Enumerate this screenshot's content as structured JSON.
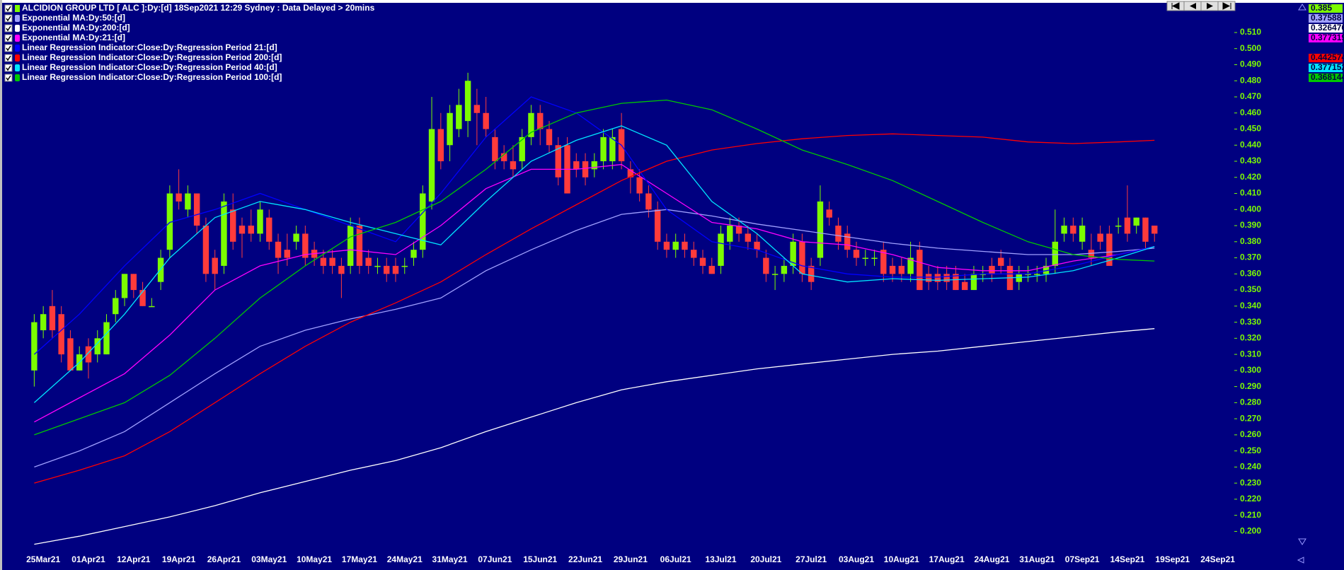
{
  "chart_data": {
    "type": "candlestick",
    "title": "ALCIDION GROUP LTD [ ALC ]:Dy:[d]  18Sep2021 12:29 Sydney : Data Delayed > 20mins",
    "up_color": "#7cfc00",
    "down_color": "#ff3b3b",
    "last_value": 0.385,
    "categories": [
      null,
      "25Mar21",
      null,
      null,
      null,
      null,
      "01Apr21",
      null,
      null,
      null,
      null,
      "12Apr21",
      null,
      null,
      null,
      null,
      "19Apr21",
      null,
      null,
      null,
      null,
      "26Apr21",
      null,
      null,
      null,
      null,
      "03May21",
      null,
      null,
      null,
      null,
      "10May21",
      null,
      null,
      null,
      null,
      "17May21",
      null,
      null,
      null,
      null,
      "24May21",
      null,
      null,
      null,
      null,
      "31May21",
      null,
      null,
      null,
      null,
      "07Jun21",
      null,
      null,
      null,
      null,
      "15Jun21",
      null,
      null,
      null,
      null,
      "22Jun21",
      null,
      null,
      null,
      null,
      "29Jun21",
      null,
      null,
      null,
      null,
      "06Jul21",
      null,
      null,
      null,
      null,
      "13Jul21",
      null,
      null,
      null,
      null,
      "20Jul21",
      null,
      null,
      null,
      null,
      "27Jul21",
      null,
      null,
      null,
      null,
      "03Aug21",
      null,
      null,
      null,
      null,
      "10Aug21",
      null,
      null,
      null,
      null,
      "17Aug21",
      null,
      null,
      null,
      null,
      "24Aug21",
      null,
      null,
      null,
      null,
      "31Aug21",
      null,
      null,
      null,
      null,
      "07Sep21",
      null,
      null,
      null,
      null,
      "14Sep21",
      null,
      null,
      null,
      null,
      "19Sep21",
      null,
      null,
      null,
      null,
      "24Sep21"
    ],
    "open": [
      0.3,
      0.325,
      0.34,
      0.335,
      0.32,
      0.3,
      0.315,
      0.31,
      0.31,
      0.335,
      0.345,
      0.36,
      0.35,
      0.34,
      0.355,
      0.375,
      0.41,
      0.4,
      0.41,
      0.39,
      0.37,
      0.365,
      0.4,
      0.39,
      0.39,
      0.385,
      0.395,
      0.38,
      0.375,
      0.38,
      0.385,
      0.375,
      0.37,
      0.37,
      0.365,
      0.365,
      0.39,
      0.37,
      0.365,
      0.365,
      0.365,
      0.365,
      0.37,
      0.375,
      0.405,
      0.45,
      0.44,
      0.45,
      0.455,
      0.465,
      0.46,
      0.445,
      0.435,
      0.43,
      0.43,
      0.445,
      0.46,
      0.45,
      0.44,
      0.44,
      0.43,
      0.43,
      0.425,
      0.43,
      0.43,
      0.45,
      0.425,
      0.42,
      0.41,
      0.4,
      0.38,
      0.375,
      0.38,
      0.375,
      0.37,
      0.365,
      0.365,
      0.38,
      0.39,
      0.385,
      0.38,
      0.37,
      0.36,
      0.36,
      0.365,
      0.38,
      0.365,
      0.37,
      0.4,
      0.39,
      0.385,
      0.375,
      0.37,
      0.37,
      0.375,
      0.365,
      0.365,
      0.36,
      0.375,
      0.36,
      0.36,
      0.36,
      0.36,
      0.355,
      0.35,
      0.36,
      0.365,
      0.37,
      0.365,
      0.355,
      0.36,
      0.36,
      0.36,
      0.365,
      0.385,
      0.39,
      0.38,
      0.375,
      0.385,
      0.385,
      0.39,
      0.395,
      0.39,
      0.395,
      0.39,
      null,
      null,
      null,
      null,
      null,
      null,
      null
    ],
    "high": [
      0.335,
      0.34,
      0.35,
      0.34,
      0.325,
      0.315,
      0.32,
      0.325,
      0.335,
      0.35,
      0.36,
      0.36,
      0.355,
      0.345,
      0.375,
      0.415,
      0.425,
      0.415,
      0.41,
      0.395,
      0.375,
      0.41,
      0.41,
      0.395,
      0.4,
      0.405,
      0.4,
      0.385,
      0.385,
      0.39,
      0.39,
      0.38,
      0.375,
      0.375,
      0.37,
      0.395,
      0.395,
      0.375,
      0.37,
      0.37,
      0.37,
      0.37,
      0.38,
      0.415,
      0.47,
      0.46,
      0.465,
      0.475,
      0.485,
      0.475,
      0.47,
      0.45,
      0.44,
      0.44,
      0.45,
      0.465,
      0.465,
      0.455,
      0.445,
      0.445,
      0.435,
      0.435,
      0.435,
      0.45,
      0.45,
      0.46,
      0.43,
      0.425,
      0.415,
      0.405,
      0.385,
      0.385,
      0.385,
      0.38,
      0.375,
      0.37,
      0.39,
      0.395,
      0.395,
      0.39,
      0.385,
      0.375,
      0.365,
      0.37,
      0.385,
      0.385,
      0.37,
      0.415,
      0.405,
      0.395,
      0.39,
      0.38,
      0.375,
      0.375,
      0.38,
      0.37,
      0.37,
      0.38,
      0.38,
      0.365,
      0.365,
      0.365,
      0.365,
      0.36,
      0.365,
      0.365,
      0.37,
      0.375,
      0.37,
      0.365,
      0.365,
      0.365,
      0.37,
      0.4,
      0.395,
      0.395,
      0.395,
      0.385,
      0.39,
      0.39,
      0.395,
      0.415,
      0.395,
      0.395,
      0.39,
      null,
      null,
      null,
      null,
      null,
      null,
      null
    ],
    "low": [
      0.29,
      0.32,
      0.32,
      0.305,
      0.3,
      0.3,
      0.295,
      0.305,
      0.31,
      0.33,
      0.34,
      0.345,
      0.34,
      0.34,
      0.35,
      0.37,
      0.4,
      0.395,
      0.385,
      0.355,
      0.35,
      0.36,
      0.375,
      0.37,
      0.38,
      0.38,
      0.375,
      0.36,
      0.365,
      0.375,
      0.365,
      0.365,
      0.36,
      0.36,
      0.345,
      0.36,
      0.36,
      0.36,
      0.36,
      0.355,
      0.355,
      0.36,
      0.365,
      0.37,
      0.4,
      0.425,
      0.43,
      0.445,
      0.445,
      0.44,
      0.445,
      0.425,
      0.425,
      0.42,
      0.425,
      0.44,
      0.44,
      0.435,
      0.415,
      0.41,
      0.42,
      0.415,
      0.42,
      0.425,
      0.425,
      0.425,
      0.41,
      0.405,
      0.395,
      0.375,
      0.37,
      0.37,
      0.37,
      0.365,
      0.36,
      0.36,
      0.36,
      0.375,
      0.38,
      0.375,
      0.37,
      0.355,
      0.35,
      0.355,
      0.36,
      0.355,
      0.35,
      0.365,
      0.39,
      0.375,
      0.37,
      0.365,
      0.365,
      0.365,
      0.355,
      0.355,
      0.355,
      0.355,
      0.35,
      0.35,
      0.35,
      0.35,
      0.35,
      0.35,
      0.35,
      0.355,
      0.355,
      0.36,
      0.35,
      0.35,
      0.355,
      0.355,
      0.355,
      0.36,
      0.38,
      0.38,
      0.375,
      0.365,
      0.375,
      0.365,
      0.385,
      0.38,
      0.385,
      0.375,
      0.38,
      null,
      null,
      null,
      null,
      null,
      null,
      null
    ],
    "close": [
      0.33,
      0.335,
      0.325,
      0.31,
      0.3,
      0.31,
      0.305,
      0.32,
      0.33,
      0.345,
      0.36,
      0.35,
      0.34,
      0.34,
      0.37,
      0.41,
      0.405,
      0.41,
      0.39,
      0.36,
      0.36,
      0.405,
      0.38,
      0.385,
      0.385,
      0.4,
      0.38,
      0.37,
      0.37,
      0.385,
      0.37,
      0.37,
      0.365,
      0.365,
      0.36,
      0.39,
      0.365,
      0.365,
      0.365,
      0.36,
      0.36,
      0.365,
      0.375,
      0.41,
      0.45,
      0.43,
      0.46,
      0.465,
      0.48,
      0.46,
      0.45,
      0.43,
      0.43,
      0.425,
      0.445,
      0.46,
      0.45,
      0.44,
      0.42,
      0.41,
      0.425,
      0.42,
      0.43,
      0.445,
      0.445,
      0.43,
      0.42,
      0.41,
      0.4,
      0.38,
      0.375,
      0.38,
      0.375,
      0.37,
      0.365,
      0.36,
      0.385,
      0.39,
      0.385,
      0.38,
      0.375,
      0.36,
      0.36,
      0.365,
      0.38,
      0.36,
      0.355,
      0.405,
      0.395,
      0.38,
      0.375,
      0.37,
      0.37,
      0.37,
      0.36,
      0.36,
      0.36,
      0.37,
      0.35,
      0.355,
      0.355,
      0.355,
      0.35,
      0.35,
      0.36,
      0.36,
      0.36,
      0.365,
      0.35,
      0.36,
      0.36,
      0.36,
      0.365,
      0.38,
      0.39,
      0.385,
      0.39,
      0.37,
      0.38,
      0.365,
      0.39,
      0.385,
      0.395,
      0.38,
      0.385,
      null,
      null,
      null,
      null,
      null,
      null,
      null
    ],
    "series": [
      {
        "name": "Exponential MA:Dy:50:[d]",
        "color": "#a0a0ff",
        "last_value": 0.37588,
        "x": [
          0,
          5,
          10,
          15,
          20,
          25,
          30,
          35,
          40,
          45,
          50,
          55,
          60,
          65,
          70,
          75,
          80,
          85,
          90,
          95,
          100,
          105,
          110,
          115,
          120,
          124
        ],
        "values": [
          0.24,
          0.25,
          0.262,
          0.28,
          0.298,
          0.315,
          0.325,
          0.332,
          0.338,
          0.345,
          0.362,
          0.375,
          0.387,
          0.397,
          0.4,
          0.396,
          0.391,
          0.387,
          0.383,
          0.379,
          0.376,
          0.374,
          0.372,
          0.372,
          0.374,
          0.376
        ]
      },
      {
        "name": "Exponential MA:Dy:200:[d]",
        "color": "#ffffff",
        "last_value": 0.326476,
        "x": [
          0,
          5,
          10,
          15,
          20,
          25,
          30,
          35,
          40,
          45,
          50,
          55,
          60,
          65,
          70,
          75,
          80,
          85,
          90,
          95,
          100,
          105,
          110,
          115,
          120,
          124
        ],
        "values": [
          0.192,
          0.197,
          0.203,
          0.209,
          0.216,
          0.224,
          0.231,
          0.238,
          0.244,
          0.252,
          0.262,
          0.271,
          0.28,
          0.288,
          0.293,
          0.297,
          0.301,
          0.304,
          0.307,
          0.31,
          0.312,
          0.315,
          0.318,
          0.321,
          0.324,
          0.326
        ]
      },
      {
        "name": "Exponential MA:Dy:21:[d]",
        "color": "#ff00ff",
        "last_value": 0.377319,
        "x": [
          0,
          5,
          10,
          15,
          20,
          25,
          30,
          35,
          40,
          45,
          50,
          55,
          60,
          65,
          70,
          75,
          80,
          85,
          90,
          95,
          100,
          105,
          110,
          115,
          120,
          124
        ],
        "values": [
          0.268,
          0.283,
          0.298,
          0.322,
          0.35,
          0.365,
          0.372,
          0.375,
          0.372,
          0.39,
          0.413,
          0.425,
          0.425,
          0.428,
          0.41,
          0.392,
          0.388,
          0.38,
          0.378,
          0.372,
          0.364,
          0.362,
          0.362,
          0.368,
          0.372,
          0.377
        ]
      },
      {
        "name": "Linear Regression Indicator:Close:Dy:Regression Period 21:[d]",
        "color": "#0000ff",
        "x": [
          0,
          5,
          10,
          15,
          20,
          25,
          30,
          35,
          40,
          45,
          50,
          55,
          60,
          65,
          70,
          75,
          80,
          85,
          90,
          95,
          100,
          105,
          110,
          115,
          120,
          124
        ],
        "values": [
          0.31,
          0.335,
          0.365,
          0.392,
          0.4,
          0.41,
          0.4,
          0.39,
          0.38,
          0.41,
          0.445,
          0.47,
          0.46,
          0.44,
          0.4,
          0.38,
          0.375,
          0.365,
          0.36,
          0.358,
          0.358,
          0.36,
          0.36,
          0.365,
          0.372,
          0.377
        ]
      },
      {
        "name": "Linear Regression Indicator:Close:Dy:Regression Period 200:[d]",
        "color": "#ff0000",
        "last_value": 0.442574,
        "x": [
          0,
          5,
          10,
          15,
          20,
          25,
          30,
          35,
          40,
          45,
          50,
          55,
          60,
          65,
          70,
          75,
          80,
          85,
          90,
          95,
          100,
          105,
          110,
          115,
          120,
          124
        ],
        "values": [
          0.23,
          0.238,
          0.247,
          0.262,
          0.28,
          0.298,
          0.315,
          0.33,
          0.342,
          0.355,
          0.372,
          0.388,
          0.403,
          0.418,
          0.43,
          0.437,
          0.441,
          0.444,
          0.446,
          0.447,
          0.446,
          0.445,
          0.442,
          0.441,
          0.442,
          0.443
        ]
      },
      {
        "name": "Linear Regression Indicator:Close:Dy:Regression Period 40:[d]",
        "color": "#00e5ff",
        "last_value": 0.377152,
        "x": [
          0,
          5,
          10,
          15,
          20,
          25,
          30,
          35,
          40,
          45,
          50,
          55,
          60,
          65,
          70,
          75,
          80,
          85,
          90,
          95,
          100,
          105,
          110,
          115,
          120,
          124
        ],
        "values": [
          0.28,
          0.305,
          0.335,
          0.37,
          0.395,
          0.405,
          0.4,
          0.392,
          0.385,
          0.378,
          0.405,
          0.43,
          0.443,
          0.452,
          0.44,
          0.405,
          0.385,
          0.36,
          0.355,
          0.357,
          0.356,
          0.357,
          0.358,
          0.362,
          0.37,
          0.377
        ]
      },
      {
        "name": "Linear Regression Indicator:Close:Dy:Regression Period 100:[d]",
        "color": "#00c800",
        "last_value": 0.368144,
        "x": [
          0,
          5,
          10,
          15,
          20,
          25,
          30,
          35,
          40,
          45,
          50,
          55,
          60,
          65,
          70,
          75,
          80,
          85,
          90,
          95,
          100,
          105,
          110,
          115,
          120,
          124
        ],
        "values": [
          0.26,
          0.27,
          0.28,
          0.297,
          0.32,
          0.345,
          0.365,
          0.383,
          0.392,
          0.405,
          0.425,
          0.448,
          0.46,
          0.466,
          0.468,
          0.462,
          0.45,
          0.437,
          0.428,
          0.418,
          0.405,
          0.392,
          0.38,
          0.372,
          0.369,
          0.368
        ]
      }
    ],
    "ylim": [
      0.187,
      0.528
    ],
    "yticks": [
      {
        "value": 0.2,
        "label": "0.200"
      },
      {
        "value": 0.21,
        "label": "0.210"
      },
      {
        "value": 0.22,
        "label": "0.220"
      },
      {
        "value": 0.23,
        "label": "0.230"
      },
      {
        "value": 0.24,
        "label": "0.240"
      },
      {
        "value": 0.25,
        "label": "0.250"
      },
      {
        "value": 0.26,
        "label": "0.260"
      },
      {
        "value": 0.27,
        "label": "0.270"
      },
      {
        "value": 0.28,
        "label": "0.280"
      },
      {
        "value": 0.29,
        "label": "0.290"
      },
      {
        "value": 0.3,
        "label": "0.300"
      },
      {
        "value": 0.31,
        "label": "0.310"
      },
      {
        "value": 0.32,
        "label": "0.320"
      },
      {
        "value": 0.33,
        "label": "0.330"
      },
      {
        "value": 0.34,
        "label": "0.340"
      },
      {
        "value": 0.35,
        "label": "0.350"
      },
      {
        "value": 0.36,
        "label": "0.360"
      },
      {
        "value": 0.37,
        "label": "0.370"
      },
      {
        "value": 0.38,
        "label": "0.380"
      },
      {
        "value": 0.39,
        "label": "0.390"
      },
      {
        "value": 0.4,
        "label": "0.400"
      },
      {
        "value": 0.41,
        "label": "0.410"
      },
      {
        "value": 0.42,
        "label": "0.420"
      },
      {
        "value": 0.43,
        "label": "0.430"
      },
      {
        "value": 0.44,
        "label": "0.440"
      },
      {
        "value": 0.45,
        "label": "0.450"
      },
      {
        "value": 0.46,
        "label": "0.460"
      },
      {
        "value": 0.47,
        "label": "0.470"
      },
      {
        "value": 0.48,
        "label": "0.480"
      },
      {
        "value": 0.49,
        "label": "0.490"
      },
      {
        "value": 0.5,
        "label": "0.500"
      },
      {
        "value": 0.51,
        "label": "0.510"
      }
    ]
  }
}
